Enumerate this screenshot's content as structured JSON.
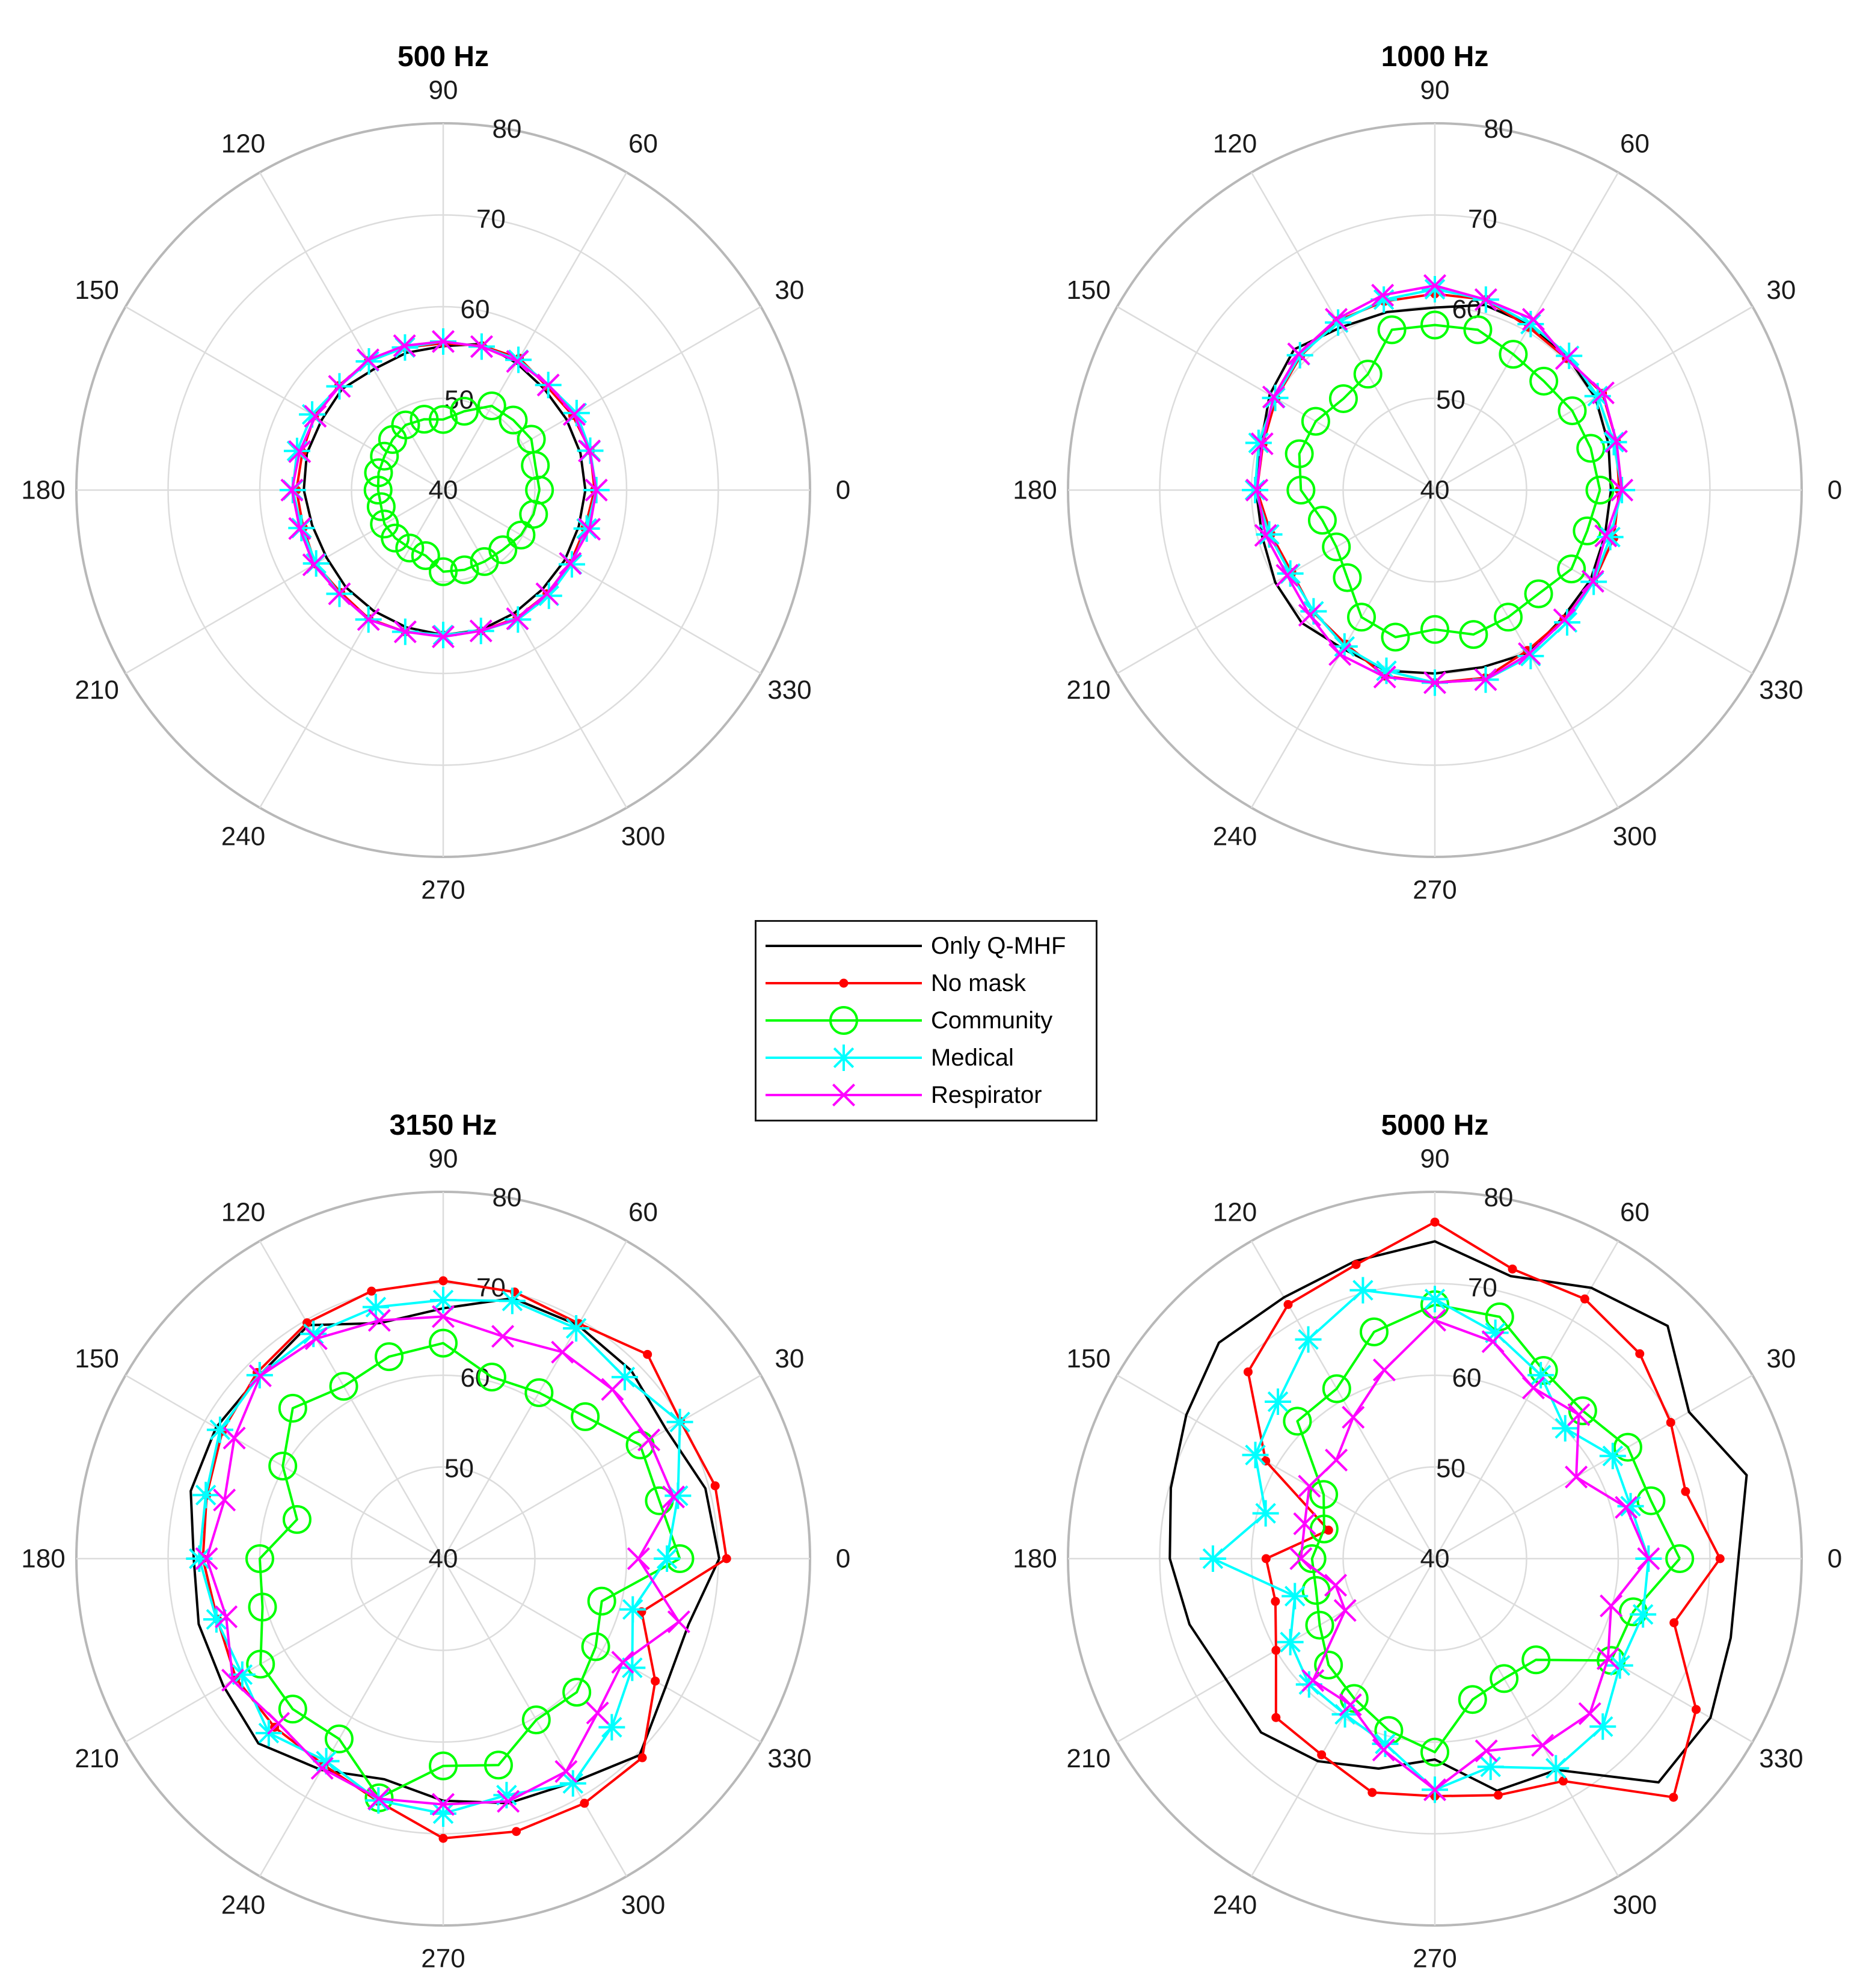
{
  "figure": {
    "angle_labels": [
      "0",
      "30",
      "60",
      "90",
      "120",
      "150",
      "180",
      "210",
      "240",
      "270",
      "300",
      "330"
    ],
    "radial_ticks": [
      "40",
      "50",
      "60",
      "70",
      "80"
    ]
  },
  "legend": {
    "items": [
      {
        "label": "Only Q-MHF",
        "color": "#000000",
        "marker": "none"
      },
      {
        "label": "No mask",
        "color": "#ff0000",
        "marker": "dot"
      },
      {
        "label": "Community",
        "color": "#00ff00",
        "marker": "circle"
      },
      {
        "label": "Medical",
        "color": "#00ffff",
        "marker": "asterisk"
      },
      {
        "label": "Respirator",
        "color": "#ff00ff",
        "marker": "x"
      }
    ]
  },
  "chart_data": [
    {
      "type": "polar-line",
      "title": "500 Hz",
      "r_range": [
        40,
        80
      ],
      "r_ticks": [
        40,
        50,
        60,
        70,
        80
      ],
      "theta_deg": [
        0,
        15,
        30,
        45,
        60,
        75,
        90,
        105,
        120,
        135,
        150,
        165,
        180,
        195,
        210,
        225,
        240,
        255,
        270,
        285,
        300,
        315,
        330,
        345,
        360
      ],
      "series": [
        {
          "name": "Only Q-MHF",
          "color": "#000000",
          "marker": "none",
          "values": [
            55.5,
            55.5,
            55.5,
            55.6,
            56.0,
            56.5,
            55.7,
            55.5,
            55.2,
            55.6,
            55.3,
            55.4,
            55.2,
            54.8,
            54.7,
            55.0,
            55.2,
            55.5,
            55.8,
            55.8,
            55.5,
            55.3,
            55.3,
            55.3,
            55.5
          ]
        },
        {
          "name": "No mask",
          "color": "#ff0000",
          "marker": "dot",
          "values": [
            56.5,
            56.6,
            56.3,
            56.0,
            56.6,
            56.3,
            56.0,
            56.1,
            56.3,
            56.1,
            56.2,
            55.9,
            56.0,
            55.8,
            56.1,
            55.8,
            56.2,
            56.0,
            55.8,
            55.9,
            56.1,
            56.0,
            56.0,
            56.0,
            56.5
          ]
        },
        {
          "name": "Community",
          "color": "#00ff00",
          "marker": "circle",
          "values": [
            50.5,
            50.4,
            51.1,
            50.8,
            50.6,
            48.9,
            47.7,
            48.0,
            48.2,
            47.8,
            47.4,
            47.3,
            47.1,
            47.0,
            47.4,
            47.4,
            47.3,
            47.4,
            48.9,
            49.0,
            49.0,
            49.2,
            49.8,
            50.2,
            50.5
          ]
        },
        {
          "name": "Medical",
          "color": "#00ffff",
          "marker": "asterisk",
          "values": [
            56.7,
            56.6,
            56.8,
            56.2,
            56.4,
            56.2,
            56.2,
            56.1,
            56.2,
            56.0,
            56.5,
            56.5,
            56.4,
            56.0,
            56.0,
            56.0,
            56.3,
            56.0,
            55.8,
            55.9,
            56.3,
            56.3,
            56.2,
            56.2,
            56.7
          ]
        },
        {
          "name": "Respirator",
          "color": "#ff00ff",
          "marker": "x",
          "values": [
            56.7,
            56.5,
            56.5,
            56.2,
            56.2,
            56.2,
            56.2,
            56.3,
            56.4,
            56.0,
            56.1,
            56.2,
            56.5,
            56.2,
            56.3,
            56.0,
            56.3,
            56.0,
            56.0,
            55.9,
            56.2,
            56.0,
            56.0,
            56.5,
            56.7
          ]
        }
      ]
    },
    {
      "type": "polar-line",
      "title": "1000 Hz",
      "r_range": [
        40,
        80
      ],
      "r_ticks": [
        40,
        50,
        60,
        70,
        80
      ],
      "theta_deg": [
        0,
        15,
        30,
        45,
        60,
        75,
        90,
        105,
        120,
        135,
        150,
        165,
        180,
        195,
        210,
        225,
        240,
        255,
        270,
        285,
        300,
        315,
        330,
        345,
        360
      ],
      "series": [
        {
          "name": "Only Q-MHF",
          "color": "#000000",
          "marker": "none",
          "values": [
            59.2,
            59.6,
            60.2,
            60.5,
            60.8,
            60.9,
            59.9,
            60.1,
            60.5,
            61.7,
            60.8,
            59.6,
            59.5,
            59.5,
            60.1,
            60.5,
            60.0,
            60.4,
            60.0,
            60.0,
            60.5,
            59.7,
            59.6,
            59.2,
            59.2
          ]
        },
        {
          "name": "No mask",
          "color": "#ff0000",
          "marker": "dot",
          "values": [
            60.1,
            60.5,
            61.1,
            60.3,
            60.5,
            61.5,
            61.4,
            61.3,
            61.3,
            60.7,
            60.0,
            59.4,
            59.4,
            58.5,
            58.0,
            58.8,
            59.4,
            61.0,
            61.0,
            61.2,
            60.2,
            59.9,
            60.0,
            60.2,
            60.1
          ]
        },
        {
          "name": "Community",
          "color": "#00ff00",
          "marker": "circle",
          "values": [
            58.0,
            57.6,
            57.3,
            56.8,
            57.1,
            58.1,
            58.0,
            58.1,
            54.6,
            54.1,
            55.0,
            55.3,
            54.6,
            52.7,
            52.4,
            53.5,
            56.0,
            56.6,
            55.2,
            56.3,
            56.0,
            56.0,
            57.2,
            57.2,
            58.0
          ]
        },
        {
          "name": "Medical",
          "color": "#00ffff",
          "marker": "asterisk",
          "values": [
            60.4,
            60.2,
            60.5,
            60.7,
            60.9,
            61.5,
            61.9,
            61.5,
            61.1,
            60.8,
            60.1,
            59.9,
            59.6,
            58.7,
            58.2,
            58.7,
            59.7,
            60.4,
            61.0,
            61.4,
            60.9,
            60.4,
            60.0,
            59.8,
            60.4
          ]
        },
        {
          "name": "Respirator",
          "color": "#ff00ff",
          "marker": "x",
          "values": [
            60.4,
            60.5,
            61.2,
            60.3,
            61.5,
            61.5,
            62.3,
            62.0,
            61.5,
            61.0,
            60.3,
            59.5,
            59.4,
            59.1,
            58.6,
            59.3,
            60.7,
            61.1,
            61.0,
            61.4,
            60.6,
            60.0,
            59.9,
            59.3,
            60.4
          ]
        }
      ]
    },
    {
      "type": "polar-line",
      "title": "3150 Hz",
      "r_range": [
        40,
        80
      ],
      "r_ticks": [
        40,
        50,
        60,
        70,
        80
      ],
      "theta_deg": [
        0,
        15,
        30,
        45,
        60,
        75,
        90,
        105,
        120,
        135,
        150,
        165,
        180,
        195,
        210,
        225,
        240,
        255,
        270,
        285,
        300,
        315,
        330,
        345,
        360
      ],
      "series": [
        {
          "name": "Only Q-MHF",
          "color": "#000000",
          "marker": "none",
          "values": [
            70.1,
            69.6,
            68.1,
            69.0,
            69.4,
            69.4,
            67.3,
            66.6,
            69.4,
            68.3,
            68.6,
            68.5,
            67.2,
            67.6,
            67.7,
            68.5,
            66.6,
            64.9,
            66.4,
            67.6,
            68.2,
            70.3,
            68.0,
            67.7,
            70.1
          ]
        },
        {
          "name": "No mask",
          "color": "#ff0000",
          "marker": "dot",
          "values": [
            70.9,
            70.7,
            69.9,
            71.5,
            69.6,
            70.1,
            70.3,
            70.2,
            69.7,
            68.7,
            67.8,
            66.7,
            66.2,
            65.5,
            66.1,
            66.0,
            66.0,
            67.4,
            70.5,
            70.8,
            70.8,
            70.7,
            66.7,
            62.4,
            70.9
          ]
        },
        {
          "name": "Community",
          "color": "#00ff00",
          "marker": "circle",
          "values": [
            65.8,
            64.4,
            64.8,
            61.9,
            60.9,
            60.5,
            63.5,
            62.8,
            61.7,
            63.2,
            60.2,
            56.5,
            60.0,
            60.4,
            63.0,
            63.2,
            62.7,
            67.0,
            62.6,
            63.3,
            60.3,
            60.6,
            59.2,
            57.9,
            65.8
          ]
        },
        {
          "name": "Medical",
          "color": "#00ffff",
          "marker": "asterisk",
          "values": [
            64.4,
            66.5,
            69.8,
            68.0,
            69.0,
            69.1,
            68.2,
            68.4,
            68.3,
            68.3,
            68.1,
            66.8,
            66.6,
            65.6,
            65.3,
            66.9,
            65.5,
            67.3,
            67.8,
            66.7,
            68.3,
            66.0,
            63.8,
            61.4,
            64.4
          ]
        },
        {
          "name": "Respirator",
          "color": "#ff00ff",
          "marker": "x",
          "values": [
            61.3,
            66.0,
            65.9,
            66.1,
            66.0,
            65.1,
            66.4,
            66.9,
            67.7,
            68.2,
            66.3,
            64.7,
            65.8,
            64.5,
            66.5,
            65.4,
            66.4,
            67.1,
            66.8,
            67.4,
            66.8,
            63.8,
            62.6,
            66.6,
            61.3
          ]
        }
      ]
    },
    {
      "type": "polar-line",
      "title": "5000 Hz",
      "r_range": [
        40,
        80
      ],
      "r_ticks": [
        40,
        50,
        60,
        70,
        80
      ],
      "theta_deg": [
        0,
        15,
        30,
        45,
        60,
        75,
        90,
        105,
        120,
        135,
        150,
        165,
        180,
        195,
        210,
        225,
        240,
        255,
        270,
        285,
        300,
        315,
        330,
        345,
        360
      ],
      "series": [
        {
          "name": "Only Q-MHF",
          "color": "#000000",
          "marker": "none",
          "values": [
            73.1,
            75.2,
            72.0,
            75.9,
            74.1,
            71.9,
            74.6,
            73.6,
            72.9,
            73.3,
            71.3,
            69.8,
            68.9,
            67.7,
            66.3,
            66.8,
            65.5,
            63.7,
            61.9,
            66.2,
            66.6,
            74.5,
            74.7,
            73.4,
            73.1
          ]
        },
        {
          "name": "No mask",
          "color": "#ff0000",
          "marker": "dot",
          "values": [
            71.1,
            68.3,
            69.7,
            71.6,
            72.7,
            72.7,
            76.7,
            73.2,
            72.0,
            68.8,
            61.3,
            52.0,
            58.4,
            58.0,
            60.0,
            64.5,
            64.7,
            66.4,
            65.9,
            66.7,
            68.0,
            76.8,
            72.9,
            67.0,
            71.1
          ]
        },
        {
          "name": "Community",
          "color": "#00ff00",
          "marker": "circle",
          "values": [
            66.7,
            64.4,
            64.3,
            62.8,
            63.7,
            67.3,
            67.7,
            65.6,
            61.4,
            61.2,
            54.0,
            52.5,
            53.4,
            53.4,
            54.5,
            56.4,
            57.6,
            59.4,
            61.1,
            55.9,
            55.1,
            55.6,
            62.2,
            62.4,
            66.7
          ]
        },
        {
          "name": "Medical",
          "color": "#00ffff",
          "marker": "asterisk",
          "values": [
            63.3,
            62.1,
            62.4,
            60.1,
            63.1,
            65.5,
            68.3,
            70.3,
            67.6,
            64.2,
            62.6,
            59.1,
            64.2,
            55.8,
            58.2,
            59.4,
            59.6,
            60.9,
            65.2,
            63.5,
            66.4,
            65.9,
            63.3,
            63.5,
            63.3
          ]
        },
        {
          "name": "Respirator",
          "color": "#ff00ff",
          "marker": "x",
          "values": [
            63.3,
            61.6,
            57.8,
            62.2,
            61.5,
            64.5,
            66.0,
            61.3,
            57.8,
            55.2,
            55.8,
            54.7,
            54.6,
            51.2,
            51.3,
            58.8,
            58.4,
            61.6,
            65.2,
            61.7,
            63.5,
            63.9,
            61.8,
            59.9,
            63.3
          ]
        }
      ]
    }
  ]
}
